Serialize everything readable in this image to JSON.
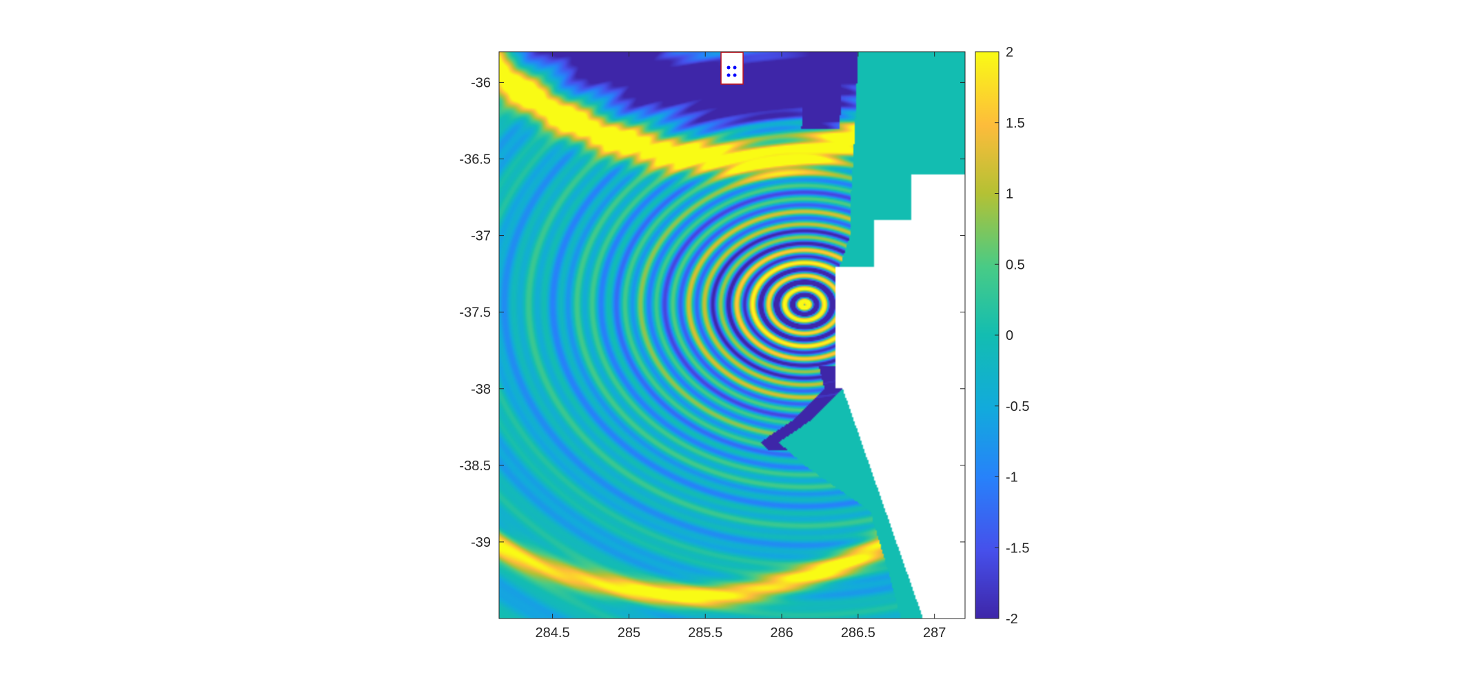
{
  "chart_data": {
    "type": "heatmap",
    "title": "",
    "xlabel": "",
    "ylabel": "",
    "xlim": [
      284.15,
      287.2
    ],
    "ylim": [
      -39.5,
      -35.8
    ],
    "x_ticks": [
      284.5,
      285,
      285.5,
      286,
      286.5,
      287
    ],
    "x_tick_labels": [
      "284.5",
      "285",
      "285.5",
      "286",
      "286.5",
      "287"
    ],
    "y_ticks": [
      -36,
      -36.5,
      -37,
      -37.5,
      -38,
      -38.5,
      -39
    ],
    "y_tick_labels": [
      "-36",
      "-36.5",
      "-37",
      "-37.5",
      "-38",
      "-38.5",
      "-39"
    ],
    "colorbar": {
      "colormap": "parula",
      "clim": [
        -2,
        2
      ],
      "ticks": [
        2,
        1.5,
        1,
        0.5,
        0,
        -0.5,
        -1,
        -1.5,
        -2
      ],
      "tick_labels": [
        "2",
        "1.5",
        "1",
        "0.5",
        "0",
        "-0.5",
        "-1",
        "-1.5",
        "-2"
      ]
    },
    "wave_source_center": [
      286.15,
      -37.45
    ],
    "land_value": 0,
    "grid": false
  },
  "colors": {
    "parula_min": "#3e26a8",
    "parula_max": "#f9fb15",
    "zero": "#13bdb1",
    "marker": "#0000ff",
    "marker_box_border": "#c0141e",
    "axis": "#262626"
  }
}
